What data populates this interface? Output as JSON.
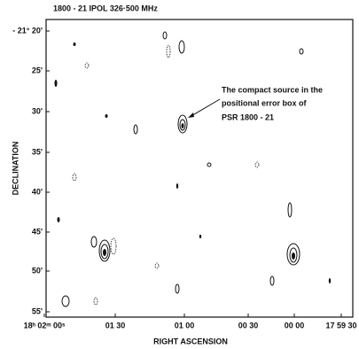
{
  "figure": {
    "title": "1800 - 21    IPOL    326·500  MHz",
    "annotation": [
      "The compact source in the",
      "positional error box of",
      "PSR 1800 - 21"
    ],
    "y_axis_label": "DECLINATION",
    "x_axis_label": "RIGHT ASCENSION",
    "y_tick_labels": [
      "- 21° 20'",
      "25'",
      "30'",
      "35'",
      "40'",
      "45'",
      "50'",
      "55'"
    ],
    "x_tick_labels": [
      "18ʰ 02ᵐ 00ˢ",
      "01 30",
      "01 00",
      "00 30",
      "00 00",
      "17 59 30"
    ]
  }
}
